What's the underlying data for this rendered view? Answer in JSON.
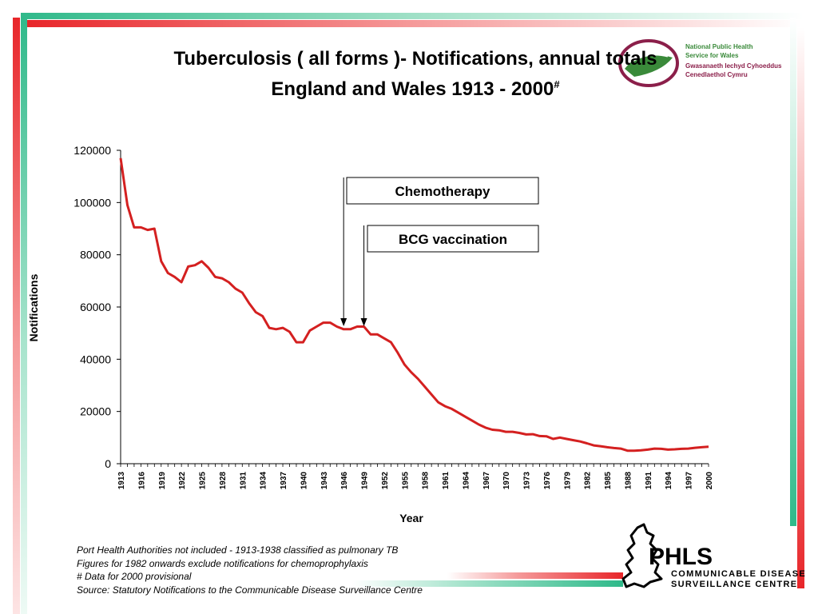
{
  "title": {
    "line1": "Tuberculosis ( all forms )- Notifications, annual totals",
    "line2": "England and Wales 1913 - 2000",
    "line2_sup": "#"
  },
  "logo_nphs": {
    "lines": [
      "National Public Health",
      "Service for Wales",
      "Gwasanaeth Iechyd Cyhoeddus",
      "Cenedlaethol Cymru"
    ]
  },
  "colors": {
    "line": "#d42020",
    "stripe_red": "#e8262a",
    "stripe_green": "#2fb98a",
    "logo_maroon": "#8b1f4a",
    "logo_green": "#3a8a3a"
  },
  "chart_data": {
    "type": "line",
    "title": "",
    "xlabel": "Year",
    "ylabel": "Notifications",
    "ylim": [
      0,
      120000
    ],
    "yticks": [
      "0",
      "20000",
      "40000",
      "60000",
      "80000",
      "100000",
      "120000"
    ],
    "xtick_labels": [
      "1913",
      "1916",
      "1919",
      "1922",
      "1925",
      "1928",
      "1931",
      "1934",
      "1937",
      "1940",
      "1943",
      "1946",
      "1949",
      "1952",
      "1955",
      "1958",
      "1961",
      "1964",
      "1967",
      "1970",
      "1973",
      "1976",
      "1979",
      "1982",
      "1985",
      "1988",
      "1991",
      "1994",
      "1997",
      "2000"
    ],
    "grid": false,
    "legend": "none",
    "series": [
      {
        "name": "",
        "x": [
          1913,
          1914,
          1915,
          1916,
          1917,
          1918,
          1919,
          1920,
          1921,
          1922,
          1923,
          1924,
          1925,
          1926,
          1927,
          1928,
          1929,
          1930,
          1931,
          1932,
          1933,
          1934,
          1935,
          1936,
          1937,
          1938,
          1939,
          1940,
          1941,
          1942,
          1943,
          1944,
          1945,
          1946,
          1947,
          1948,
          1949,
          1950,
          1951,
          1952,
          1953,
          1954,
          1955,
          1956,
          1957,
          1958,
          1959,
          1960,
          1961,
          1962,
          1963,
          1964,
          1965,
          1966,
          1967,
          1968,
          1969,
          1970,
          1971,
          1972,
          1973,
          1974,
          1975,
          1976,
          1977,
          1978,
          1979,
          1980,
          1981,
          1982,
          1983,
          1984,
          1985,
          1986,
          1987,
          1988,
          1989,
          1990,
          1991,
          1992,
          1993,
          1994,
          1995,
          1996,
          1997,
          1998,
          1999,
          2000
        ],
        "y": [
          117000,
          99000,
          90500,
          90500,
          89500,
          90000,
          77500,
          73000,
          71500,
          69500,
          75500,
          76000,
          77500,
          75000,
          71500,
          71000,
          69500,
          67000,
          65500,
          61500,
          58000,
          56500,
          52000,
          51500,
          52000,
          50500,
          46500,
          46500,
          51000,
          52500,
          54000,
          54000,
          52500,
          51500,
          51500,
          52500,
          52500,
          49500,
          49500,
          48000,
          46500,
          42500,
          38000,
          35000,
          32500,
          29500,
          26500,
          23500,
          22000,
          21000,
          19500,
          18000,
          16500,
          15000,
          13800,
          13000,
          12800,
          12200,
          12200,
          11800,
          11200,
          11300,
          10600,
          10500,
          9500,
          10000,
          9500,
          9000,
          8500,
          7800,
          7000,
          6700,
          6300,
          6000,
          5800,
          5000,
          5000,
          5100,
          5400,
          5800,
          5700,
          5400,
          5500,
          5700,
          5800,
          6100,
          6300,
          6500
        ]
      }
    ],
    "annotations": [
      {
        "label": "Chemotherapy",
        "x": 1946
      },
      {
        "label": "BCG vaccination",
        "x": 1949
      }
    ]
  },
  "footnotes": [
    "Port Health Authorities not included - 1913-1938 classified as pulmonary TB",
    "Figures for 1982 onwards exclude notifications for chemoprophylaxis",
    "# Data for 2000 provisional",
    "Source: Statutory Notifications to the Communicable Disease Surveillance Centre"
  ],
  "logo_phls": {
    "mark": "PHLS",
    "line1": "COMMUNICABLE DISEASE",
    "line2": "SURVEILLANCE CENTRE"
  }
}
